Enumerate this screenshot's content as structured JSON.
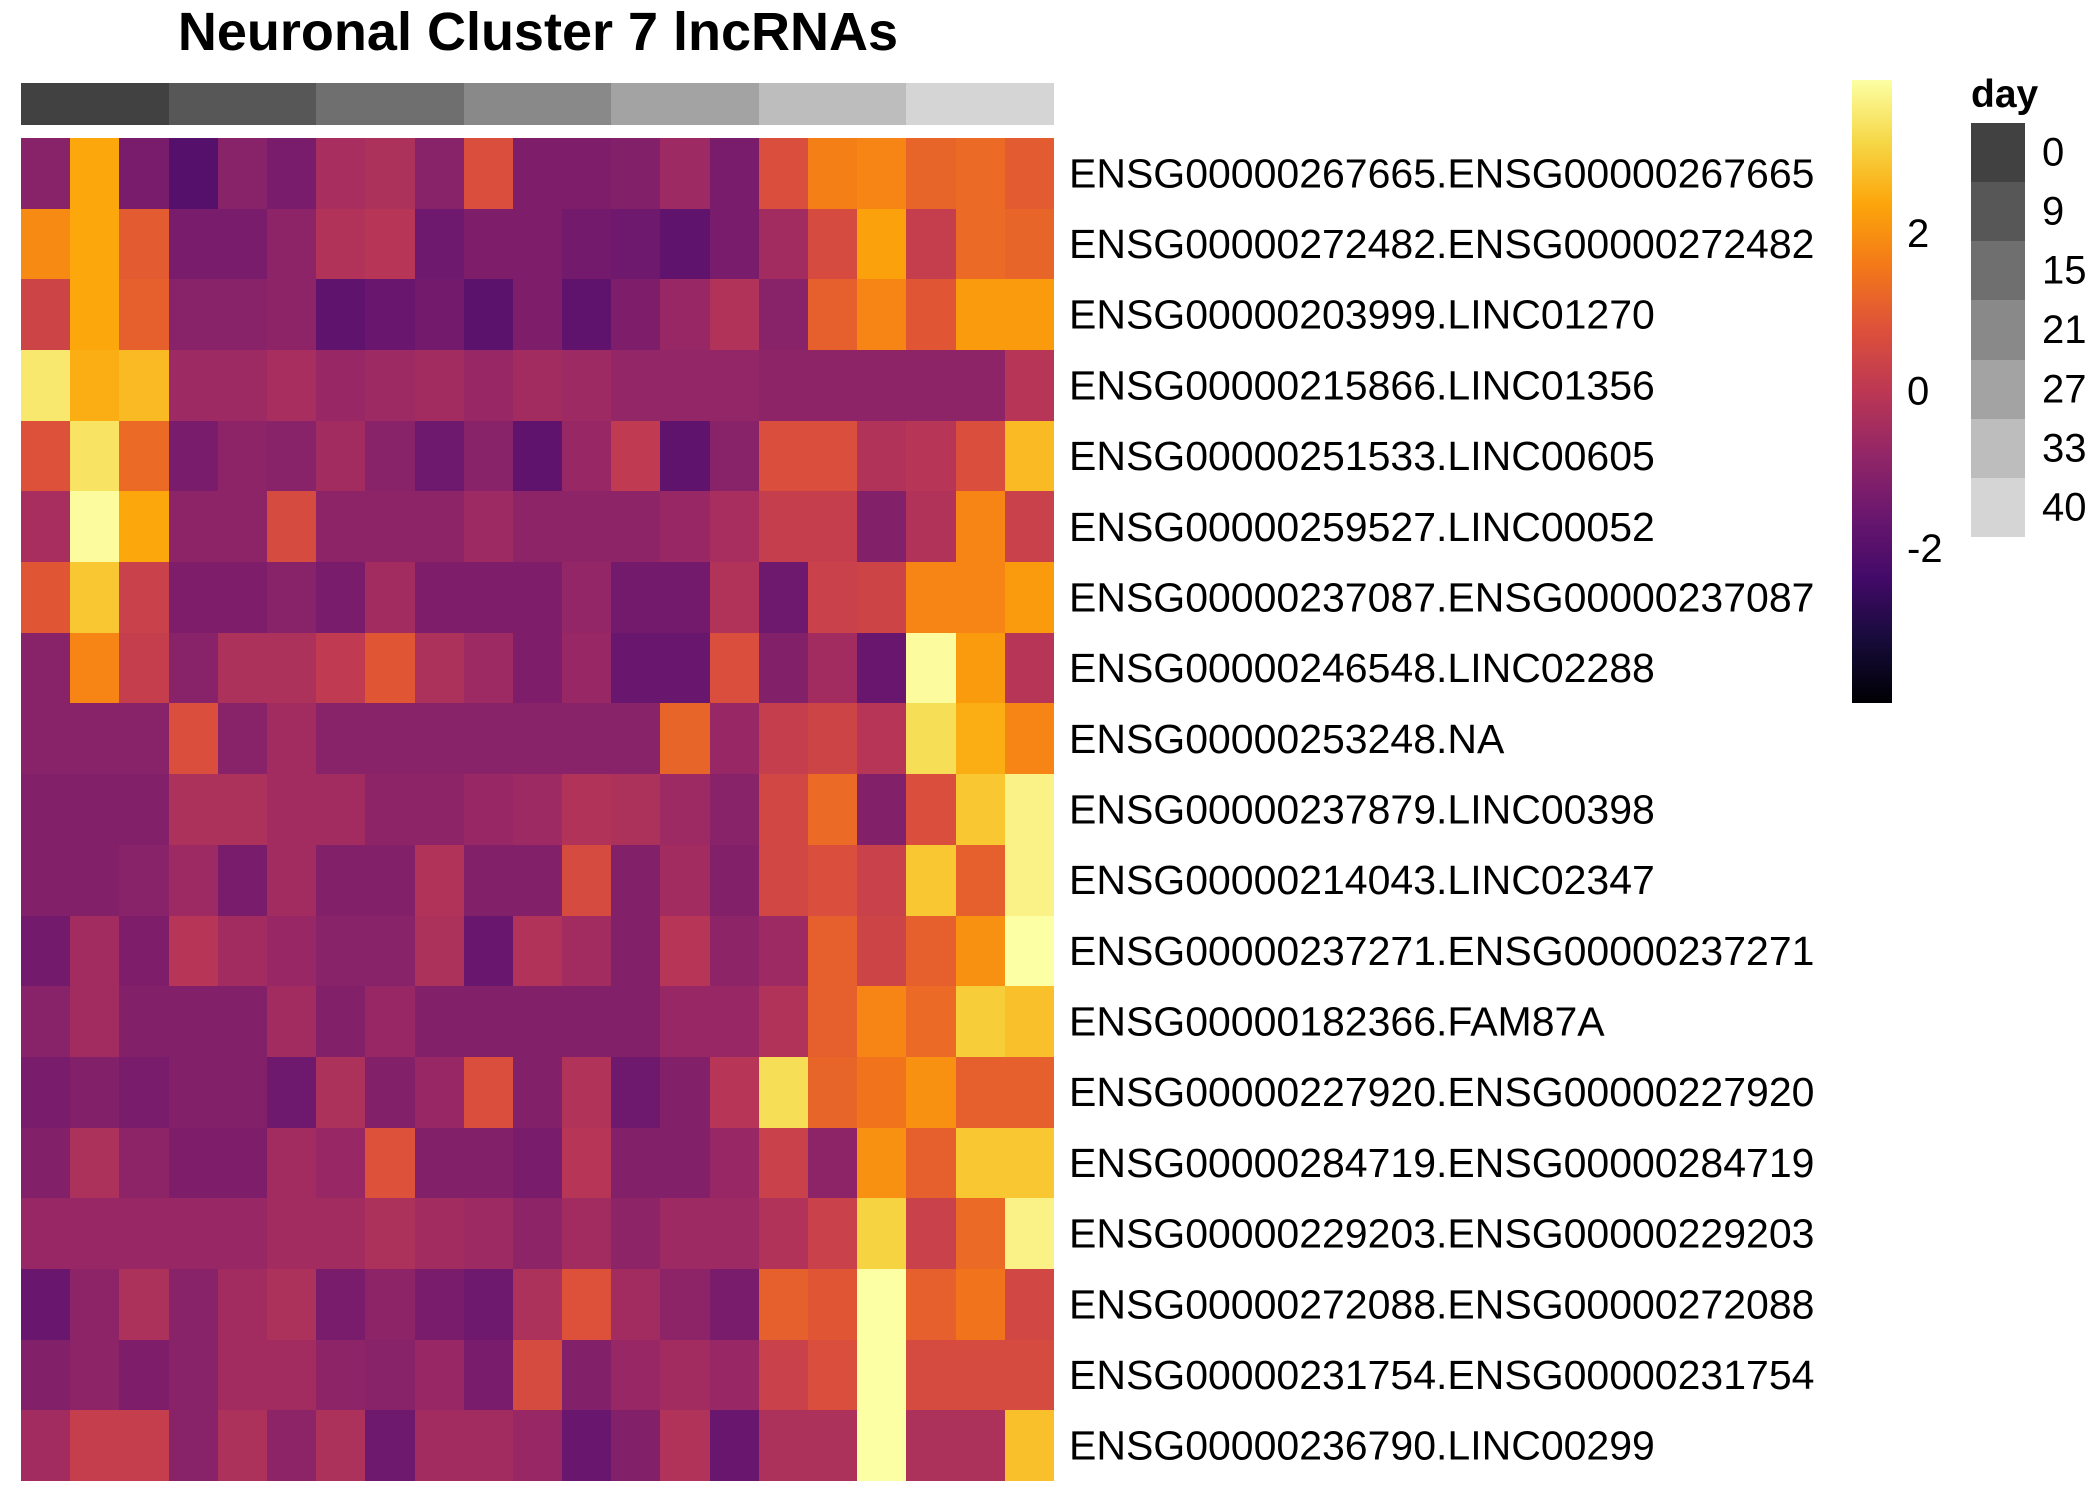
{
  "chart_data": {
    "type": "heatmap",
    "title": "Neuronal Cluster 7 lncRNAs",
    "rows": [
      "ENSG00000267665.ENSG00000267665",
      "ENSG00000272482.ENSG00000272482",
      "ENSG00000203999.LINC01270",
      "ENSG00000215866.LINC01356",
      "ENSG00000251533.LINC00605",
      "ENSG00000259527.LINC00052",
      "ENSG00000237087.ENSG00000237087",
      "ENSG00000246548.LINC02288",
      "ENSG00000253248.NA",
      "ENSG00000237879.LINC00398",
      "ENSG00000214043.LINC02347",
      "ENSG00000237271.ENSG00000237271",
      "ENSG00000182366.FAM87A",
      "ENSG00000227920.ENSG00000227920",
      "ENSG00000284719.ENSG00000284719",
      "ENSG00000229203.ENSG00000229203",
      "ENSG00000272088.ENSG00000272088",
      "ENSG00000231754.ENSG00000231754",
      "ENSG00000236790.LINC00299"
    ],
    "values": [
      [
        -1.0,
        2.4,
        -1.3,
        -2.0,
        -1.0,
        -1.3,
        -0.4,
        -0.3,
        -1.0,
        0.7,
        -1.2,
        -1.2,
        -1.1,
        -0.6,
        -1.3,
        0.7,
        1.7,
        1.8,
        1.2,
        1.3,
        1.0
      ],
      [
        1.9,
        2.4,
        1.0,
        -1.3,
        -1.3,
        -0.9,
        -0.2,
        -0.1,
        -1.5,
        -1.2,
        -1.2,
        -1.4,
        -1.5,
        -1.8,
        -1.3,
        -0.5,
        0.6,
        2.3,
        0.2,
        1.3,
        1.2
      ],
      [
        0.4,
        2.4,
        1.1,
        -1.0,
        -1.0,
        -0.9,
        -1.8,
        -1.6,
        -1.4,
        -1.9,
        -1.2,
        -1.8,
        -1.2,
        -0.7,
        -0.2,
        -1.0,
        1.1,
        1.8,
        0.9,
        2.2,
        2.2
      ],
      [
        3.5,
        2.5,
        2.7,
        -0.6,
        -0.6,
        -0.4,
        -0.7,
        -0.6,
        -0.5,
        -0.7,
        -0.5,
        -0.6,
        -0.8,
        -0.8,
        -0.8,
        -0.9,
        -0.9,
        -0.9,
        -0.9,
        -0.9,
        -0.1
      ],
      [
        0.8,
        3.4,
        1.3,
        -1.3,
        -0.9,
        -1.0,
        -0.5,
        -1.0,
        -1.5,
        -1.0,
        -1.8,
        -0.7,
        0.1,
        -1.8,
        -1.0,
        0.7,
        0.7,
        -0.2,
        -0.1,
        0.7,
        2.7
      ],
      [
        -0.4,
        3.9,
        2.4,
        -0.9,
        -0.9,
        0.6,
        -0.9,
        -0.9,
        -0.9,
        -0.6,
        -0.9,
        -0.9,
        -0.9,
        -0.7,
        -0.4,
        0.2,
        0.2,
        -1.1,
        -0.2,
        1.8,
        0.3
      ],
      [
        0.9,
        2.9,
        0.3,
        -1.2,
        -1.2,
        -1.0,
        -1.3,
        -0.5,
        -1.2,
        -1.2,
        -1.2,
        -0.8,
        -1.4,
        -1.4,
        -0.2,
        -1.5,
        0.3,
        0.4,
        1.8,
        1.8,
        2.2
      ],
      [
        -1.0,
        1.8,
        0.2,
        -1.0,
        -0.3,
        -0.3,
        0.1,
        0.9,
        -0.3,
        -0.6,
        -1.2,
        -0.7,
        -1.6,
        -1.6,
        0.7,
        -1.1,
        -0.5,
        -1.6,
        3.9,
        2.2,
        -0.1
      ],
      [
        -1.0,
        -1.0,
        -1.0,
        0.7,
        -1.0,
        -0.5,
        -1.0,
        -1.0,
        -1.0,
        -1.0,
        -1.0,
        -1.0,
        -1.0,
        1.2,
        -0.7,
        0.2,
        0.4,
        -0.1,
        3.3,
        2.5,
        1.8
      ],
      [
        -1.1,
        -1.1,
        -1.1,
        -0.3,
        -0.3,
        -0.5,
        -0.5,
        -0.9,
        -0.9,
        -0.7,
        -0.6,
        -0.2,
        -0.3,
        -0.6,
        -1.0,
        0.5,
        1.3,
        -1.1,
        0.7,
        2.9,
        3.7
      ],
      [
        -1.1,
        -1.1,
        -1.0,
        -0.6,
        -1.3,
        -0.5,
        -1.1,
        -1.1,
        -0.2,
        -1.1,
        -1.1,
        0.6,
        -1.1,
        -0.5,
        -1.1,
        0.5,
        0.7,
        0.3,
        2.9,
        1.1,
        3.7
      ],
      [
        -1.4,
        -0.5,
        -1.2,
        -0.1,
        -0.5,
        -0.7,
        -1.0,
        -1.0,
        -0.3,
        -1.6,
        -0.2,
        -0.5,
        -1.1,
        -0.1,
        -0.9,
        -0.6,
        1.1,
        0.4,
        1.1,
        2.0,
        3.95
      ],
      [
        -1.0,
        -0.5,
        -1.1,
        -1.1,
        -1.1,
        -0.5,
        -1.1,
        -0.7,
        -1.1,
        -1.1,
        -1.1,
        -1.1,
        -1.1,
        -0.7,
        -0.7,
        -0.2,
        1.1,
        1.8,
        1.3,
        3.0,
        2.8
      ],
      [
        -1.3,
        -1.1,
        -1.3,
        -1.1,
        -1.1,
        -1.5,
        -0.3,
        -1.1,
        -0.7,
        0.7,
        -1.1,
        -0.2,
        -1.5,
        -1.1,
        -0.1,
        3.3,
        1.2,
        1.5,
        2.0,
        1.1,
        1.1
      ],
      [
        -1.1,
        -0.3,
        -0.9,
        -1.2,
        -1.2,
        -0.5,
        -0.7,
        0.8,
        -1.1,
        -1.1,
        -1.3,
        -0.1,
        -1.1,
        -1.1,
        -0.7,
        0.3,
        -0.9,
        2.0,
        1.1,
        2.9,
        2.9
      ],
      [
        -0.7,
        -0.7,
        -0.7,
        -0.7,
        -0.7,
        -0.5,
        -0.5,
        -0.3,
        -0.5,
        -0.6,
        -0.9,
        -0.5,
        -0.9,
        -0.6,
        -0.6,
        -0.2,
        0.3,
        3.1,
        0.3,
        1.3,
        3.7
      ],
      [
        -1.6,
        -0.9,
        -0.3,
        -1.0,
        -0.5,
        -0.3,
        -1.3,
        -0.9,
        -1.3,
        -1.5,
        -0.3,
        0.8,
        -0.5,
        -0.9,
        -1.3,
        1.1,
        0.9,
        3.95,
        1.1,
        1.5,
        0.5
      ],
      [
        -1.1,
        -0.9,
        -1.2,
        -1.0,
        -0.5,
        -0.5,
        -0.9,
        -1.0,
        -0.7,
        -1.3,
        0.6,
        -1.1,
        -0.7,
        -0.5,
        -0.7,
        0.3,
        0.7,
        3.95,
        0.6,
        0.6,
        0.6
      ],
      [
        -0.5,
        0.2,
        0.2,
        -1.0,
        -0.3,
        -0.9,
        -0.3,
        -1.5,
        -0.5,
        -0.5,
        -0.7,
        -1.6,
        -1.1,
        -0.2,
        -1.6,
        -0.3,
        -0.3,
        3.95,
        -0.3,
        -0.3,
        2.8
      ]
    ],
    "colorbar": {
      "min": -3.95,
      "max": 3.95,
      "ticks": [
        2,
        0,
        -2
      ],
      "tick_labels": [
        "2",
        "0",
        "-2"
      ],
      "colors": [
        "#000004",
        "#160b39",
        "#420a68",
        "#6a176e",
        "#932667",
        "#bc3754",
        "#dd513a",
        "#f37819",
        "#fca50a",
        "#f6d746",
        "#fcffa4"
      ]
    },
    "day_annotation": {
      "title": "day",
      "levels": [
        "0",
        "9",
        "15",
        "21",
        "27",
        "33",
        "40"
      ],
      "colors": [
        "#414141",
        "#575757",
        "#6f6f6f",
        "#898989",
        "#a3a3a3",
        "#bdbdbd",
        "#d5d5d5"
      ],
      "column_levels": [
        0,
        0,
        0,
        9,
        9,
        9,
        15,
        15,
        15,
        21,
        21,
        21,
        27,
        27,
        27,
        33,
        33,
        33,
        40,
        40,
        40
      ]
    }
  }
}
